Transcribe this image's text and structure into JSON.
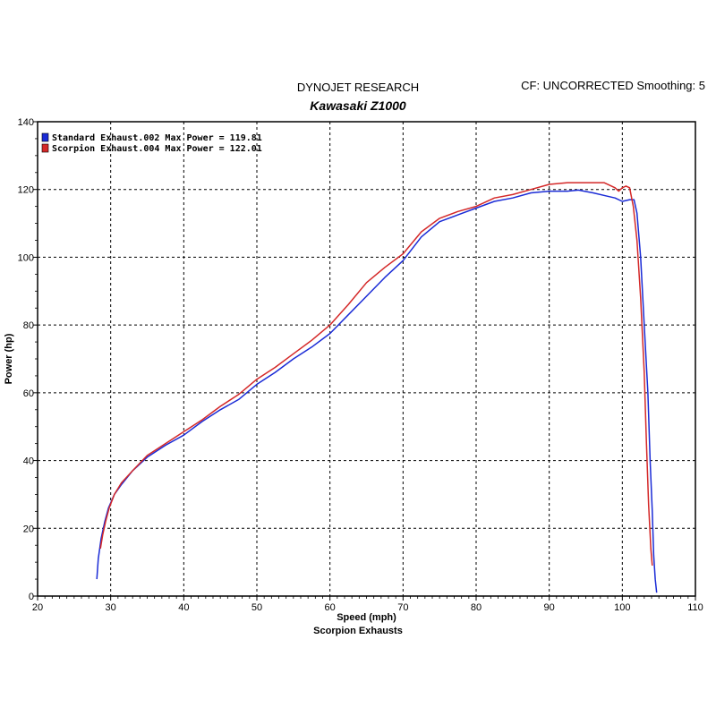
{
  "header": {
    "title": "DYNOJET RESEARCH",
    "subtitle": "Kawasaki Z1000",
    "corrections": "CF: UNCORRECTED  Smoothing: 5"
  },
  "footer": {
    "label": "Scorpion Exhausts"
  },
  "chart_data": {
    "type": "line",
    "title": "DYNOJET RESEARCH",
    "subtitle": "Kawasaki Z1000",
    "xlabel": "Speed (mph)",
    "ylabel": "Power (hp)",
    "xlim": [
      20,
      110
    ],
    "ylim": [
      0,
      140
    ],
    "xticks": [
      20,
      30,
      40,
      50,
      60,
      70,
      80,
      90,
      100,
      110
    ],
    "yticks": [
      0,
      20,
      40,
      60,
      80,
      100,
      120,
      140
    ],
    "grid": true,
    "legend_position": "top-left",
    "series": [
      {
        "name": "Standard Exhaust.002 Max Power = 119.81",
        "color": "#1a2bd6",
        "x": [
          28.1,
          28.3,
          28.7,
          29.2,
          29.7,
          30.5,
          31.5,
          33,
          35,
          37.5,
          40,
          42.5,
          45,
          47.5,
          50,
          52.5,
          55,
          57.5,
          60,
          62.5,
          65,
          67.5,
          70,
          72.5,
          75,
          77.5,
          80,
          82.5,
          85,
          87.5,
          90,
          92.5,
          94,
          96,
          98,
          99,
          100,
          101,
          101.6,
          102,
          102.5,
          103,
          103.5,
          103.8,
          104.1,
          104.3,
          104.5,
          104.7
        ],
        "y": [
          5,
          11,
          17,
          22,
          26,
          30,
          33,
          37,
          41,
          44.5,
          47.5,
          51.5,
          55,
          58,
          62.5,
          66,
          70,
          73.5,
          77.5,
          83,
          88.5,
          94,
          99,
          106,
          110.5,
          112.5,
          114.5,
          116.5,
          117.5,
          119,
          119.5,
          119.5,
          119.81,
          119,
          118,
          117.5,
          116.5,
          117,
          117,
          113,
          100,
          80,
          60,
          40,
          25,
          12,
          5,
          1
        ]
      },
      {
        "name": "Scorpion Exhaust.004 Max Power = 122.01",
        "color": "#d42828",
        "x": [
          28.6,
          28.9,
          29.3,
          29.8,
          30.5,
          31.5,
          33,
          35,
          37.5,
          40,
          42.5,
          45,
          47.5,
          50,
          52.5,
          55,
          57.5,
          60,
          62.5,
          65,
          67.5,
          70,
          72.5,
          75,
          77.5,
          80,
          82.5,
          85,
          87.5,
          90,
          92.5,
          95,
          97.5,
          99,
          99.5,
          100,
          100.5,
          101,
          101.5,
          102,
          102.5,
          103,
          103.3,
          103.6,
          103.9,
          104.1
        ],
        "y": [
          14,
          18,
          22,
          26,
          30,
          33.5,
          37,
          41.5,
          45,
          48.5,
          52,
          56,
          59.5,
          64,
          67.5,
          71.5,
          75.5,
          80,
          86,
          92.5,
          97,
          101,
          107.5,
          111.5,
          113.5,
          115,
          117.5,
          118.5,
          120,
          121.5,
          122,
          122,
          122.01,
          120.5,
          119.5,
          120.5,
          121,
          120.5,
          115,
          105,
          88,
          66,
          45,
          27,
          14,
          9
        ]
      }
    ]
  }
}
